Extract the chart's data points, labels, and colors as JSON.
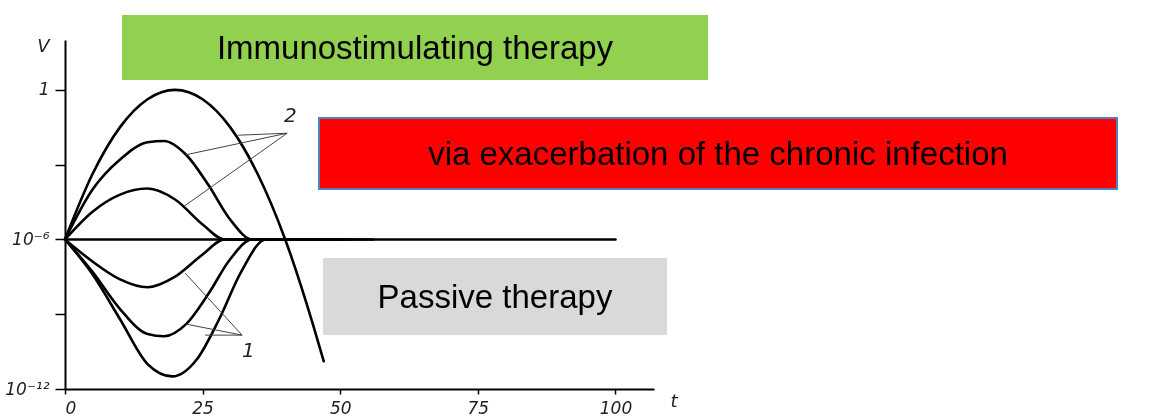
{
  "chart_data": {
    "type": "line",
    "xlabel": "t",
    "ylabel": "V",
    "log": "y",
    "grid": false,
    "legend": false,
    "marker": "none",
    "line_style": "solid",
    "xlim": [
      0,
      107
    ],
    "xticks": [
      0,
      25,
      50,
      75,
      100
    ],
    "ylim": [
      1e-12,
      100
    ],
    "yticks": [
      {
        "value": 1e-12,
        "label": "10⁻¹²"
      },
      {
        "value": 1e-09,
        "label": null
      },
      {
        "value": 1e-06,
        "label": "10⁻⁶"
      },
      {
        "value": 0.001,
        "label": null
      },
      1
    ],
    "series": [
      {
        "color": "#000000",
        "x": [
          0,
          5,
          10,
          15,
          20,
          25,
          30,
          35,
          40,
          45,
          47
        ],
        "values": [
          1e-06,
          0.00042,
          0.032,
          0.42,
          1,
          0.42,
          0.032,
          0.00042,
          1e-06,
          4.2e-10,
          1.3e-11
        ]
      },
      {
        "color": "#000000",
        "x": [
          0,
          5,
          10,
          15,
          18,
          22,
          26,
          30,
          34,
          52
        ],
        "values": [
          1e-06,
          0.0001,
          0.0016,
          0.0079,
          0.0089,
          0.0025,
          0.00016,
          6.3e-06,
          1e-06,
          1e-06
        ]
      },
      {
        "color": "#000000",
        "x": [
          0,
          5,
          10,
          15,
          20,
          25,
          29,
          42
        ],
        "values": [
          1e-06,
          1.3e-05,
          6.3e-05,
          0.00011,
          4e-05,
          4e-06,
          1e-06,
          1e-06
        ]
      },
      {
        "color": "#000000",
        "x": [
          0,
          100
        ],
        "values": [
          1e-06,
          1e-06
        ]
      },
      {
        "color": "#000000",
        "x": [
          0,
          5,
          10,
          15,
          20,
          25,
          29,
          47
        ],
        "values": [
          1e-06,
          1.3e-07,
          2.5e-08,
          1.2e-08,
          3.2e-08,
          2.5e-07,
          1e-06,
          1e-06
        ]
      },
      {
        "color": "#000000",
        "x": [
          0,
          5,
          10,
          15,
          18,
          22,
          26,
          30,
          34,
          56
        ],
        "values": [
          1e-06,
          5e-08,
          1.6e-09,
          1.6e-10,
          1.3e-10,
          4e-10,
          6.3e-09,
          1.6e-07,
          1e-06,
          1e-06
        ]
      },
      {
        "color": "#000000",
        "x": [
          0,
          5,
          10,
          15,
          19.5,
          24,
          28,
          32,
          36.5,
          50
        ],
        "values": [
          1e-06,
          4e-08,
          6.3e-10,
          1e-11,
          3.2e-12,
          1.6e-11,
          6.3e-10,
          5e-08,
          1e-06,
          1e-06
        ]
      }
    ],
    "annotations": [
      "Immunostimulating therapy",
      "via exacerbation of the chronic infection",
      "Passive therapy",
      {
        "text": "2",
        "x": 22,
        "y": 0.0025
      },
      {
        "text": "1",
        "x": 22,
        "y": 4e-10
      }
    ]
  }
}
